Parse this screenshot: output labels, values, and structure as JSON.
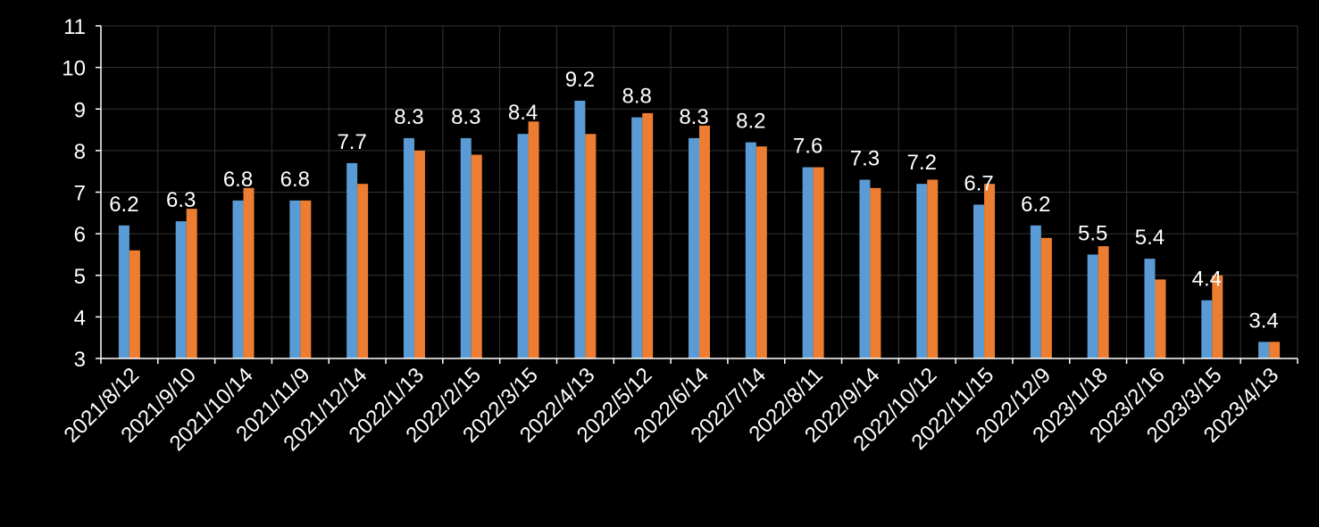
{
  "chart_data": {
    "type": "bar",
    "categories": [
      "2021/8/12",
      "2021/9/10",
      "2021/10/14",
      "2021/11/9",
      "2021/12/14",
      "2022/1/13",
      "2022/2/15",
      "2022/3/15",
      "2022/4/13",
      "2022/5/12",
      "2022/6/14",
      "2022/7/14",
      "2022/8/11",
      "2022/9/14",
      "2022/10/12",
      "2022/11/15",
      "2022/12/9",
      "2023/1/18",
      "2023/2/16",
      "2023/3/15",
      "2023/4/13"
    ],
    "series": [
      {
        "color": "#5b9bd5",
        "values": [
          6.2,
          6.3,
          6.8,
          6.8,
          7.7,
          8.3,
          8.3,
          8.4,
          9.2,
          8.8,
          8.3,
          8.2,
          7.6,
          7.3,
          7.2,
          6.7,
          6.2,
          5.5,
          5.4,
          4.4,
          3.4
        ]
      },
      {
        "color": "#ed7d31",
        "values": [
          5.6,
          6.6,
          7.1,
          6.8,
          7.2,
          8.0,
          7.9,
          8.7,
          8.4,
          8.9,
          8.6,
          8.1,
          7.6,
          7.1,
          7.3,
          7.2,
          5.9,
          5.7,
          4.9,
          5.0,
          3.4
        ]
      }
    ],
    "data_labels": [
      "6.2",
      "6.3",
      "6.8",
      "6.8",
      "7.7",
      "8.3",
      "8.3",
      "8.4",
      "9.2",
      "8.8",
      "8.3",
      "8.2",
      "7.6",
      "7.3",
      "7.2",
      "6.7",
      "6.2",
      "5.5",
      "5.4",
      "4.4",
      "3.4"
    ],
    "ylim": [
      3,
      11
    ],
    "yticks": [
      3,
      4,
      5,
      6,
      7,
      8,
      9,
      10,
      11
    ],
    "grid": true,
    "background": "#000000",
    "grid_color": "#333333",
    "axis_color": "#ffffff",
    "text_color": "#ffffff"
  }
}
